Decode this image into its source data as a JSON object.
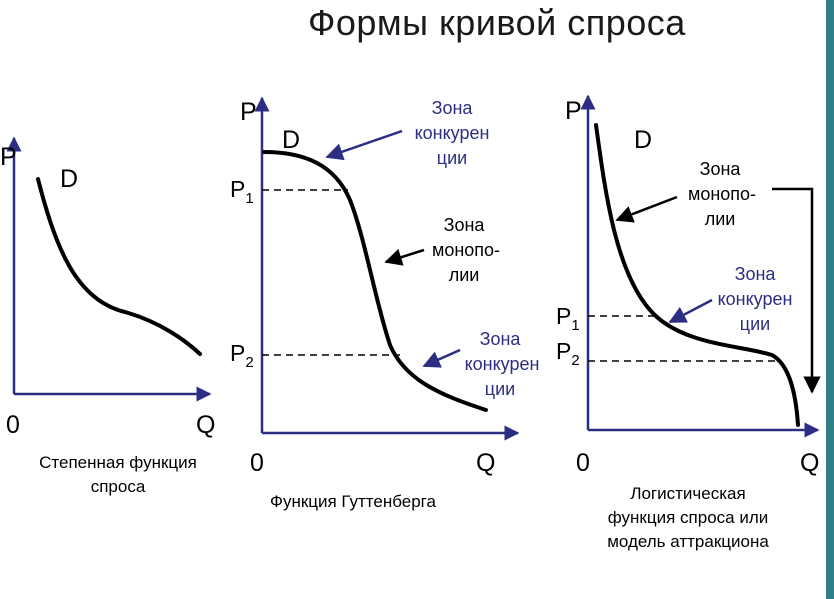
{
  "title": "Формы кривой спроса",
  "accent_color": "#2b2e83",
  "panel1": {
    "y_axis": "P",
    "x_axis": "Q",
    "origin": "0",
    "curve_label": "D",
    "caption": [
      "Степенная функция",
      "спроса"
    ]
  },
  "panel2": {
    "y_axis": "P",
    "x_axis": "Q",
    "origin": "0",
    "curve_label": "D",
    "p1": {
      "base": "P",
      "sub": "1"
    },
    "p2": {
      "base": "P",
      "sub": "2"
    },
    "zone_competition_top": [
      "Зона",
      "конкурен",
      "ции"
    ],
    "zone_monopoly": [
      "Зона",
      "монопо-",
      "лии"
    ],
    "zone_competition_bottom": [
      "Зона",
      "конкурен",
      "ции"
    ],
    "caption": "Функция Гуттенберга"
  },
  "panel3": {
    "y_axis": "P",
    "x_axis": "Q",
    "origin": "0",
    "curve_label": "D",
    "p1": {
      "base": "P",
      "sub": "1"
    },
    "p2": {
      "base": "P",
      "sub": "2"
    },
    "zone_monopoly": [
      "Зона",
      "монопо-",
      "лии"
    ],
    "zone_competition": [
      "Зона",
      "конкурен",
      "ции"
    ],
    "caption": [
      "Логистическая",
      "функция спроса или",
      "модель аттракциона"
    ]
  }
}
